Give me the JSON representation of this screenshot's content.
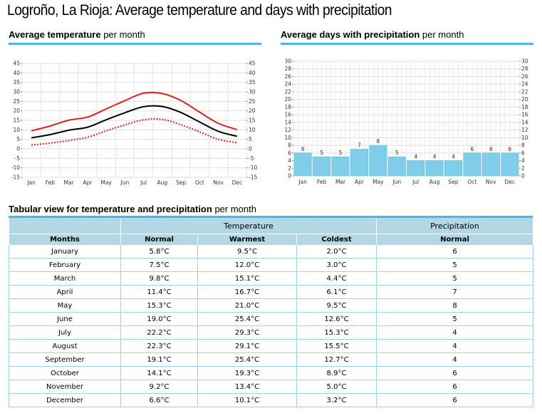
{
  "title": "Logroño, La Rioja: Average temperature and days with precipitation",
  "temp_section": {
    "bold": "Average temperature",
    "rest": " per month"
  },
  "precip_section": {
    "bold": "Average days with precipitation",
    "rest": " per month"
  },
  "table_section": {
    "bold": "Tabular view for temperature and precipitation",
    "rest": " per month"
  },
  "colors": {
    "accent": "#4cb8e0",
    "warmest": "#e02020",
    "normal": "#000000",
    "coldest": "#e02020",
    "bar": "#7fcde8",
    "header": "#b2d8e6"
  },
  "chart_data": [
    {
      "type": "line",
      "categories": [
        "Jan",
        "Feb",
        "Mar",
        "Apr",
        "May",
        "Jun",
        "Jul",
        "Aug",
        "Sep",
        "Oct",
        "Nov",
        "Dec"
      ],
      "series": [
        {
          "values": [
            9.5,
            12.0,
            15.1,
            16.7,
            21.0,
            25.4,
            29.3,
            29.1,
            25.4,
            19.3,
            13.4,
            10.1
          ]
        },
        {
          "values": [
            5.8,
            7.5,
            9.8,
            11.4,
            15.3,
            19.0,
            22.2,
            22.3,
            19.1,
            14.1,
            9.2,
            6.6
          ]
        },
        {
          "values": [
            2.0,
            3.0,
            4.4,
            6.1,
            9.5,
            12.6,
            15.3,
            15.5,
            12.7,
            8.9,
            5.0,
            3.2
          ]
        }
      ],
      "ylim": [
        -15,
        45
      ],
      "yticks": [
        45,
        40,
        35,
        30,
        25,
        20,
        15,
        10,
        5,
        0,
        -5,
        -10,
        -15
      ],
      "grid": true,
      "line_styles": [
        "solid-red",
        "solid-black",
        "dotted-red"
      ]
    },
    {
      "type": "bar",
      "categories": [
        "Jan",
        "Feb",
        "Mar",
        "Apr",
        "May",
        "Jun",
        "Jul",
        "Aug",
        "Sep",
        "Oct",
        "Nov",
        "Dec"
      ],
      "values": [
        6,
        5,
        5,
        7,
        8,
        5,
        4,
        4,
        4,
        6,
        6,
        6
      ],
      "ylim": [
        0,
        30
      ],
      "yticks": [
        30,
        28,
        26,
        24,
        22,
        20,
        18,
        16,
        14,
        12,
        10,
        8,
        6,
        4,
        2,
        0
      ],
      "grid": true
    }
  ],
  "table": {
    "group_headers": {
      "temperature": "Temperature",
      "precipitation": "Precipitation"
    },
    "columns": [
      "Months",
      "Normal",
      "Warmest",
      "Coldest",
      "Normal"
    ],
    "rows": [
      [
        "January",
        "5.8°C",
        "9.5°C",
        "2.0°C",
        "6"
      ],
      [
        "February",
        "7.5°C",
        "12.0°C",
        "3.0°C",
        "5"
      ],
      [
        "March",
        "9.8°C",
        "15.1°C",
        "4.4°C",
        "5"
      ],
      [
        "April",
        "11.4°C",
        "16.7°C",
        "6.1°C",
        "7"
      ],
      [
        "May",
        "15.3°C",
        "21.0°C",
        "9.5°C",
        "8"
      ],
      [
        "June",
        "19.0°C",
        "25.4°C",
        "12.6°C",
        "5"
      ],
      [
        "July",
        "22.2°C",
        "29.3°C",
        "15.3°C",
        "4"
      ],
      [
        "August",
        "22.3°C",
        "29.1°C",
        "15.5°C",
        "4"
      ],
      [
        "September",
        "19.1°C",
        "25.4°C",
        "12.7°C",
        "4"
      ],
      [
        "October",
        "14.1°C",
        "19.3°C",
        "8.9°C",
        "6"
      ],
      [
        "November",
        "9.2°C",
        "13.4°C",
        "5.0°C",
        "6"
      ],
      [
        "December",
        "6.6°C",
        "10.1°C",
        "3.2°C",
        "6"
      ]
    ]
  }
}
